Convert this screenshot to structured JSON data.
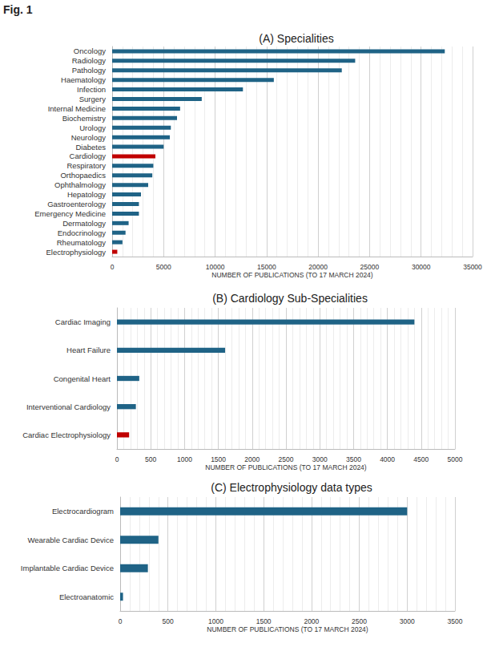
{
  "figure_label": "Fig. 1",
  "chart_data": [
    {
      "type": "bar",
      "title": "(A) Specialities",
      "orientation": "horizontal",
      "xlabel": "NUMBER OF PUBLICATIONS (TO 17 MARCH 2024)",
      "categories": [
        "Oncology",
        "Radiology",
        "Pathology",
        "Haematology",
        "Infection",
        "Surgery",
        "Internal Medicine",
        "Biochemistry",
        "Urology",
        "Neurology",
        "Diabetes",
        "Cardiology",
        "Respiratory",
        "Orthopaedics",
        "Ophthalmology",
        "Hepatology",
        "Gastroenterology",
        "Emergency Medicine",
        "Dermatology",
        "Endocrinology",
        "Rheumatology",
        "Electrophysiology"
      ],
      "values": [
        32300,
        23600,
        22300,
        15700,
        12700,
        8700,
        6600,
        6300,
        5700,
        5600,
        5000,
        4200,
        4000,
        3900,
        3500,
        2800,
        2600,
        2600,
        1600,
        1300,
        1000,
        500
      ],
      "colors": [
        "#1f6386",
        "#1f6386",
        "#1f6386",
        "#1f6386",
        "#1f6386",
        "#1f6386",
        "#1f6386",
        "#1f6386",
        "#1f6386",
        "#1f6386",
        "#1f6386",
        "#c00000",
        "#1f6386",
        "#1f6386",
        "#1f6386",
        "#1f6386",
        "#1f6386",
        "#1f6386",
        "#1f6386",
        "#1f6386",
        "#1f6386",
        "#c00000"
      ],
      "xlim": [
        0,
        35000
      ],
      "xticks": [
        0,
        5000,
        10000,
        15000,
        20000,
        25000,
        30000,
        35000
      ],
      "grid": true
    },
    {
      "type": "bar",
      "title": "(B) Cardiology Sub-Specialities",
      "orientation": "horizontal",
      "xlabel": "NUMBER OF PUBLICATIONS (TO 17 MARCH 2024)",
      "categories": [
        "Cardiac Imaging",
        "Heart Failure",
        "Congenital Heart",
        "Interventional Cardiology",
        "Cardiac Electrophysiology"
      ],
      "values": [
        4400,
        1600,
        330,
        280,
        180
      ],
      "colors": [
        "#1f6386",
        "#1f6386",
        "#1f6386",
        "#1f6386",
        "#c00000"
      ],
      "xlim": [
        0,
        5000
      ],
      "xticks": [
        0,
        500,
        1000,
        1500,
        2000,
        2500,
        3000,
        3500,
        4000,
        4500,
        5000
      ],
      "grid": true
    },
    {
      "type": "bar",
      "title": "(C) Electrophysiology data types",
      "orientation": "horizontal",
      "xlabel": "NUMBER OF PUBLICATIONS (TO 17 MARCH 2024)",
      "categories": [
        "Electrocardiogram",
        "Wearable Cardiac Device",
        "Implantable Cardiac Device",
        "Electroanatomic"
      ],
      "values": [
        3000,
        400,
        290,
        30
      ],
      "colors": [
        "#1f6386",
        "#1f6386",
        "#1f6386",
        "#1f6386"
      ],
      "xlim": [
        0,
        3500
      ],
      "xticks": [
        0,
        500,
        1000,
        1500,
        2000,
        2500,
        3000,
        3500
      ],
      "grid": true
    }
  ]
}
